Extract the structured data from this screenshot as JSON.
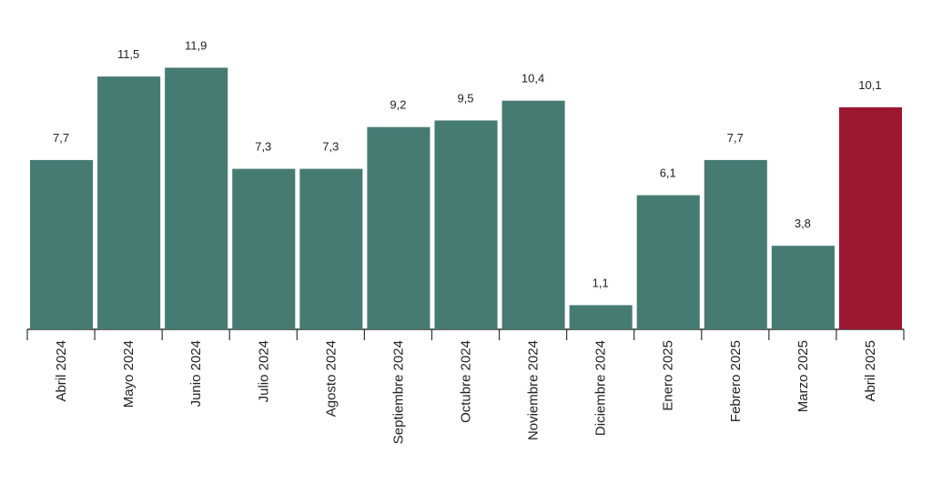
{
  "chart_data": {
    "type": "bar",
    "categories": [
      "Abril 2024",
      "Mayo 2024",
      "Junio 2024",
      "Julio 2024",
      "Agosto 2024",
      "Septiembre 2024",
      "Octubre 2024",
      "Noviembre 2024",
      "Diciembre 2024",
      "Enero 2025",
      "Febrero 2025",
      "Marzo 2025",
      "Abril 2025"
    ],
    "values": [
      7.7,
      11.5,
      11.9,
      7.3,
      7.3,
      9.2,
      9.5,
      10.4,
      1.1,
      6.1,
      7.7,
      3.8,
      10.1
    ],
    "value_labels": [
      "7,7",
      "11,5",
      "11,9",
      "7,3",
      "7,3",
      "9,2",
      "9,5",
      "10,4",
      "1,1",
      "6,1",
      "7,7",
      "3,8",
      "10,1"
    ],
    "colors": [
      "#467b72",
      "#467b72",
      "#467b72",
      "#467b72",
      "#467b72",
      "#467b72",
      "#467b72",
      "#467b72",
      "#467b72",
      "#467b72",
      "#467b72",
      "#467b72",
      "#9b1830"
    ],
    "ylim": [
      0,
      12
    ]
  }
}
